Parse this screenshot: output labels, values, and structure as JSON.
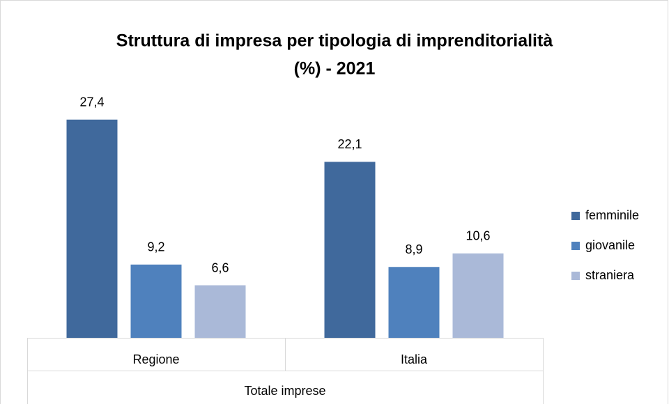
{
  "chart_data": {
    "type": "bar",
    "title": "Struttura di impresa per tipologia di imprenditorialità",
    "subtitle": "(%) - 2021",
    "categories": [
      "Regione",
      "Italia"
    ],
    "category_group": "Totale imprese",
    "series": [
      {
        "name": "femminile",
        "color": "#40699c",
        "values": [
          27.4,
          22.1
        ],
        "value_labels": [
          "27,4",
          "22,1"
        ]
      },
      {
        "name": "giovanile",
        "color": "#4f81bd",
        "values": [
          9.2,
          8.9
        ],
        "value_labels": [
          "9,2",
          "8,9"
        ]
      },
      {
        "name": "straniera",
        "color": "#aab9d8",
        "values": [
          6.6,
          10.6
        ],
        "value_labels": [
          "6,6",
          "10,6"
        ]
      }
    ],
    "ylim": [
      0,
      30
    ],
    "legend": "right"
  }
}
